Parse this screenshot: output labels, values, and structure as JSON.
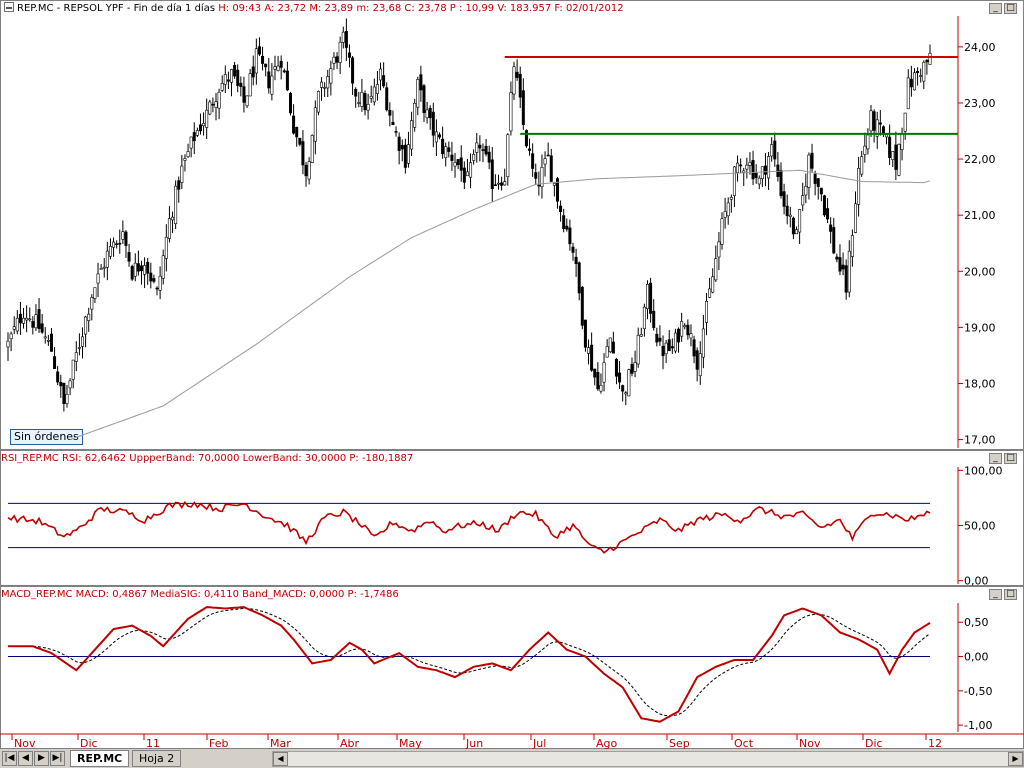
{
  "price_panel": {
    "title": "REP.MC - REPSOL YPF - Fin de día 1 días",
    "stats": "H: 09:43  A: 23,72  M: 23,89  m: 23,68  C: 23,78  P : 10,99  V: 183.957  F: 02/01/2012",
    "badge": "Sin órdenes",
    "resistance_line": 23.82,
    "support_line": 22.45,
    "line_colors": {
      "resistance": "#cc0000",
      "support": "#007700",
      "moving_average": "#999999"
    }
  },
  "rsi_panel": {
    "title": "RSI_REP.MC  RSI: 62,6462  UppperBand: 70,0000  LowerBand: 30,0000  P: -180,1887",
    "upper_band": 70,
    "lower_band": 30
  },
  "macd_panel": {
    "title": "MACD_REP.MC  MACD: 0,4867  MediaSIG: 0,4110  Band_MACD: 0,0000  P: -1,7486",
    "band": 0
  },
  "x_axis": {
    "labels": [
      "Nov",
      "Dic",
      "11",
      "Feb",
      "Mar",
      "Abr",
      "May",
      "Jun",
      "Jul",
      "Ago",
      "Sep",
      "Oct",
      "Nov",
      "Dic",
      "12"
    ]
  },
  "bottom_bar": {
    "tabs": [
      {
        "label": "REP.MC",
        "active": true
      },
      {
        "label": "Hoja 2",
        "active": false
      }
    ]
  },
  "chart_data": [
    {
      "type": "candlestick",
      "name": "REP.MC",
      "y_ticks": [
        "24,00",
        "23,00",
        "22,00",
        "21,00",
        "20,00",
        "19,00",
        "18,00",
        "17,00"
      ],
      "ylim": [
        16.85,
        24.55
      ],
      "anchors_index_close": [
        [
          0,
          18.7
        ],
        [
          5,
          19.3
        ],
        [
          10,
          19.0
        ],
        [
          14,
          18.6
        ],
        [
          18,
          17.6
        ],
        [
          22,
          18.5
        ],
        [
          27,
          19.6
        ],
        [
          32,
          20.3
        ],
        [
          37,
          20.7
        ],
        [
          40,
          20.0
        ],
        [
          44,
          20.2
        ],
        [
          48,
          19.6
        ],
        [
          52,
          20.9
        ],
        [
          56,
          21.8
        ],
        [
          60,
          22.4
        ],
        [
          64,
          22.8
        ],
        [
          68,
          23.3
        ],
        [
          72,
          23.5
        ],
        [
          76,
          23.0
        ],
        [
          80,
          23.8
        ],
        [
          84,
          23.4
        ],
        [
          88,
          23.8
        ],
        [
          92,
          22.6
        ],
        [
          96,
          21.8
        ],
        [
          100,
          23.1
        ],
        [
          104,
          23.6
        ],
        [
          108,
          24.1
        ],
        [
          112,
          23.2
        ],
        [
          116,
          22.9
        ],
        [
          120,
          23.5
        ],
        [
          124,
          22.6
        ],
        [
          128,
          22.0
        ],
        [
          132,
          23.3
        ],
        [
          136,
          22.6
        ],
        [
          140,
          22.2
        ],
        [
          144,
          22.0
        ],
        [
          148,
          21.6
        ],
        [
          152,
          22.3
        ],
        [
          156,
          21.6
        ],
        [
          160,
          21.7
        ],
        [
          163,
          23.7
        ],
        [
          166,
          22.6
        ],
        [
          170,
          21.5
        ],
        [
          174,
          22.0
        ],
        [
          178,
          21.1
        ],
        [
          182,
          20.4
        ],
        [
          186,
          18.8
        ],
        [
          190,
          17.9
        ],
        [
          194,
          18.8
        ],
        [
          198,
          17.8
        ],
        [
          202,
          18.4
        ],
        [
          206,
          19.6
        ],
        [
          210,
          18.6
        ],
        [
          214,
          18.6
        ],
        [
          218,
          19.2
        ],
        [
          222,
          18.4
        ],
        [
          226,
          19.6
        ],
        [
          230,
          20.8
        ],
        [
          234,
          21.7
        ],
        [
          238,
          22.0
        ],
        [
          242,
          21.6
        ],
        [
          246,
          22.2
        ],
        [
          250,
          21.2
        ],
        [
          254,
          20.6
        ],
        [
          258,
          22.0
        ],
        [
          262,
          21.4
        ],
        [
          266,
          20.4
        ],
        [
          270,
          19.7
        ],
        [
          274,
          21.8
        ],
        [
          278,
          22.7
        ],
        [
          282,
          22.4
        ],
        [
          286,
          21.9
        ],
        [
          290,
          23.3
        ],
        [
          294,
          23.6
        ],
        [
          297,
          23.78
        ]
      ],
      "ma_anchors_index_value": [
        [
          20,
          17.0
        ],
        [
          50,
          17.6
        ],
        [
          80,
          18.7
        ],
        [
          110,
          19.9
        ],
        [
          130,
          20.6
        ],
        [
          150,
          21.1
        ],
        [
          170,
          21.55
        ],
        [
          190,
          21.65
        ],
        [
          215,
          21.7
        ],
        [
          235,
          21.75
        ],
        [
          255,
          21.8
        ],
        [
          275,
          21.6
        ],
        [
          295,
          21.58
        ]
      ]
    },
    {
      "type": "line",
      "name": "RSI",
      "y_ticks": [
        "100,00",
        "50,00",
        "0,00"
      ],
      "ylim": [
        -3,
        103
      ],
      "anchors_index_value": [
        [
          0,
          57
        ],
        [
          10,
          54
        ],
        [
          18,
          40
        ],
        [
          22,
          45
        ],
        [
          30,
          65
        ],
        [
          38,
          62
        ],
        [
          44,
          55
        ],
        [
          52,
          68
        ],
        [
          60,
          70
        ],
        [
          68,
          65
        ],
        [
          76,
          70
        ],
        [
          82,
          60
        ],
        [
          90,
          50
        ],
        [
          96,
          35
        ],
        [
          102,
          57
        ],
        [
          108,
          62
        ],
        [
          114,
          50
        ],
        [
          118,
          38
        ],
        [
          124,
          53
        ],
        [
          130,
          45
        ],
        [
          136,
          55
        ],
        [
          140,
          45
        ],
        [
          146,
          50
        ],
        [
          152,
          52
        ],
        [
          158,
          45
        ],
        [
          164,
          62
        ],
        [
          170,
          60
        ],
        [
          176,
          40
        ],
        [
          182,
          50
        ],
        [
          188,
          30
        ],
        [
          192,
          26
        ],
        [
          198,
          35
        ],
        [
          204,
          45
        ],
        [
          210,
          55
        ],
        [
          216,
          45
        ],
        [
          222,
          55
        ],
        [
          230,
          60
        ],
        [
          236,
          55
        ],
        [
          242,
          65
        ],
        [
          250,
          58
        ],
        [
          256,
          60
        ],
        [
          262,
          48
        ],
        [
          268,
          55
        ],
        [
          272,
          38
        ],
        [
          278,
          62
        ],
        [
          284,
          60
        ],
        [
          290,
          55
        ],
        [
          297,
          62
        ]
      ]
    },
    {
      "type": "line",
      "name": "MACD",
      "series_names": [
        "MACD",
        "MediaSIG"
      ],
      "y_ticks": [
        "0,50",
        "0,00",
        "-0,50",
        "-1,00"
      ],
      "ylim": [
        -1.1,
        0.78
      ],
      "anchors_index_value": [
        [
          0,
          0.15
        ],
        [
          8,
          0.15
        ],
        [
          14,
          0.05
        ],
        [
          22,
          -0.2
        ],
        [
          28,
          0.1
        ],
        [
          34,
          0.4
        ],
        [
          40,
          0.45
        ],
        [
          46,
          0.3
        ],
        [
          50,
          0.15
        ],
        [
          58,
          0.55
        ],
        [
          64,
          0.72
        ],
        [
          70,
          0.7
        ],
        [
          76,
          0.72
        ],
        [
          82,
          0.6
        ],
        [
          88,
          0.45
        ],
        [
          92,
          0.25
        ],
        [
          98,
          -0.1
        ],
        [
          104,
          -0.05
        ],
        [
          110,
          0.2
        ],
        [
          114,
          0.1
        ],
        [
          118,
          -0.1
        ],
        [
          126,
          0.05
        ],
        [
          132,
          -0.15
        ],
        [
          138,
          -0.2
        ],
        [
          144,
          -0.3
        ],
        [
          150,
          -0.15
        ],
        [
          156,
          -0.1
        ],
        [
          162,
          -0.2
        ],
        [
          168,
          0.1
        ],
        [
          174,
          0.35
        ],
        [
          180,
          0.1
        ],
        [
          186,
          0.0
        ],
        [
          192,
          -0.25
        ],
        [
          198,
          -0.45
        ],
        [
          204,
          -0.9
        ],
        [
          210,
          -0.95
        ],
        [
          216,
          -0.8
        ],
        [
          222,
          -0.3
        ],
        [
          228,
          -0.15
        ],
        [
          234,
          -0.05
        ],
        [
          240,
          -0.05
        ],
        [
          246,
          0.3
        ],
        [
          250,
          0.6
        ],
        [
          256,
          0.7
        ],
        [
          262,
          0.6
        ],
        [
          268,
          0.35
        ],
        [
          274,
          0.25
        ],
        [
          280,
          0.1
        ],
        [
          284,
          -0.25
        ],
        [
          288,
          0.1
        ],
        [
          292,
          0.35
        ],
        [
          297,
          0.49
        ]
      ]
    }
  ]
}
